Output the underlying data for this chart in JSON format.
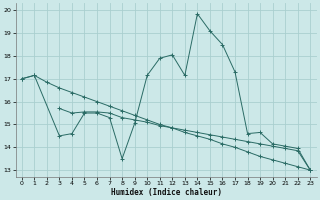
{
  "bg_color": "#cce8e8",
  "line_color": "#2a6b65",
  "grid_color": "#aacfcf",
  "xlabel": "Humidex (Indice chaleur)",
  "ylim": [
    12.7,
    20.3
  ],
  "xlim": [
    -0.5,
    23.5
  ],
  "yticks": [
    13,
    14,
    15,
    16,
    17,
    18,
    19,
    20
  ],
  "xticks": [
    0,
    1,
    2,
    3,
    4,
    5,
    6,
    7,
    8,
    9,
    10,
    11,
    12,
    13,
    14,
    15,
    16,
    17,
    18,
    19,
    20,
    21,
    22,
    23
  ],
  "line1_x": [
    0,
    1,
    2,
    3,
    4,
    5,
    6,
    7,
    8,
    9,
    10,
    11,
    12,
    13,
    14,
    15,
    16,
    17,
    18,
    19,
    20,
    21,
    22,
    23
  ],
  "line1_y": [
    17.0,
    17.15,
    16.85,
    16.6,
    16.4,
    16.2,
    16.0,
    15.8,
    15.6,
    15.4,
    15.2,
    15.0,
    14.85,
    14.65,
    14.5,
    14.35,
    14.15,
    14.0,
    13.8,
    13.6,
    13.45,
    13.3,
    13.15,
    13.0
  ],
  "line2_x": [
    3,
    4,
    5,
    6,
    7,
    8,
    9,
    10,
    11,
    12,
    13,
    14,
    15,
    16,
    17,
    18,
    19,
    20,
    21,
    22,
    23
  ],
  "line2_y": [
    15.7,
    15.5,
    15.55,
    15.55,
    15.5,
    15.3,
    15.2,
    15.1,
    14.95,
    14.85,
    14.75,
    14.65,
    14.55,
    14.45,
    14.35,
    14.25,
    14.15,
    14.05,
    13.95,
    13.85,
    13.0
  ],
  "line3_x": [
    0,
    1,
    3,
    4,
    5,
    6,
    7,
    8,
    9,
    10,
    11,
    12,
    13,
    14,
    15,
    16,
    17,
    18,
    19,
    20,
    21,
    22,
    23
  ],
  "line3_y": [
    17.0,
    17.15,
    14.5,
    14.6,
    15.5,
    15.5,
    15.3,
    13.5,
    15.05,
    17.15,
    17.9,
    18.05,
    17.15,
    19.85,
    19.1,
    18.5,
    17.3,
    14.6,
    14.65,
    14.15,
    14.05,
    13.95,
    13.0
  ]
}
